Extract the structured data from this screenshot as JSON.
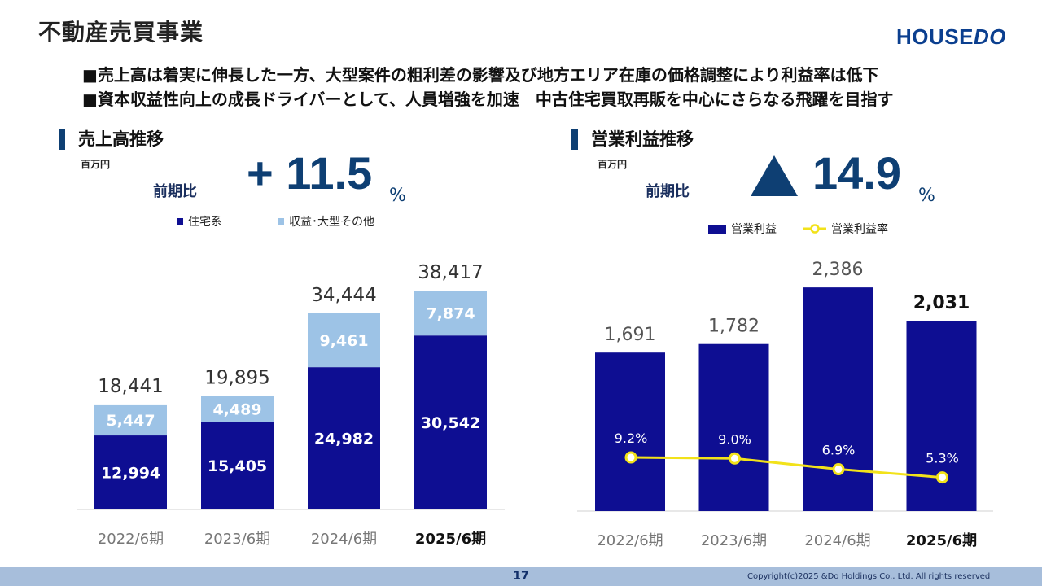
{
  "header": {
    "title": "不動産売買事業",
    "logo_a": "HOUSE",
    "logo_b": "DO"
  },
  "bullets": [
    "■売上高は着実に伸長した一方、大型案件の粗利差の影響及び地方エリア在庫の価格調整により利益率は低下",
    "■資本収益性向上の成長ドライバーとして、人員増強を加速　中古住宅買取再販を中心にさらなる飛躍を目指す"
  ],
  "left_panel": {
    "title": "売上高推移",
    "unit": "百万円",
    "yoy_label": "前期比",
    "yoy_value": "+ 11.5",
    "yoy_pct": "%"
  },
  "right_panel": {
    "title": "営業利益推移",
    "unit": "百万円",
    "yoy_label": "前期比",
    "yoy_value": "14.9",
    "yoy_pct": "%"
  },
  "colors": {
    "primary": "#0e0e92",
    "secondary": "#9dc3e6",
    "line": "#f2e21a",
    "accent": "#0e3f73"
  },
  "chart_data": [
    {
      "type": "bar",
      "stacked": true,
      "categories": [
        "2022/6期",
        "2023/6期",
        "2024/6期",
        "2025/6期"
      ],
      "highlight_category": "2025/6期",
      "series": [
        {
          "name": "住宅系",
          "values": [
            12994,
            15405,
            24982,
            30542
          ],
          "labels": [
            "12,994",
            "15,405",
            "24,982",
            "30,542"
          ]
        },
        {
          "name": "収益･大型その他",
          "values": [
            5447,
            4489,
            9461,
            7874
          ],
          "labels": [
            "5,447",
            "4,489",
            "9,461",
            "7,874"
          ]
        }
      ],
      "totals": [
        18441,
        19895,
        34444,
        38417
      ],
      "total_labels": [
        "18,441",
        "19,895",
        "34,444",
        "38,417"
      ],
      "ylim": [
        0,
        40000
      ],
      "legend": "top",
      "grid": false
    },
    {
      "type": "bar",
      "categories": [
        "2022/6期",
        "2023/6期",
        "2024/6期",
        "2025/6期"
      ],
      "highlight_category": "2025/6期",
      "series": [
        {
          "name": "営業利益",
          "values": [
            1691,
            1782,
            2386,
            2031
          ],
          "labels": [
            "1,691",
            "1,782",
            "2,386",
            "2,031"
          ]
        }
      ],
      "line_series": {
        "name": "営業利益率",
        "values": [
          9.2,
          9.0,
          6.9,
          5.3
        ],
        "labels": [
          "9.2%",
          "9.0%",
          "6.9%",
          "5.3%"
        ]
      },
      "ylim": [
        0,
        2500
      ],
      "legend": "top",
      "grid": false
    }
  ],
  "footer": {
    "page_number": "17",
    "copyright": "Copyright(c)2025 &Do Holdings Co., Ltd. All rights reserved"
  }
}
